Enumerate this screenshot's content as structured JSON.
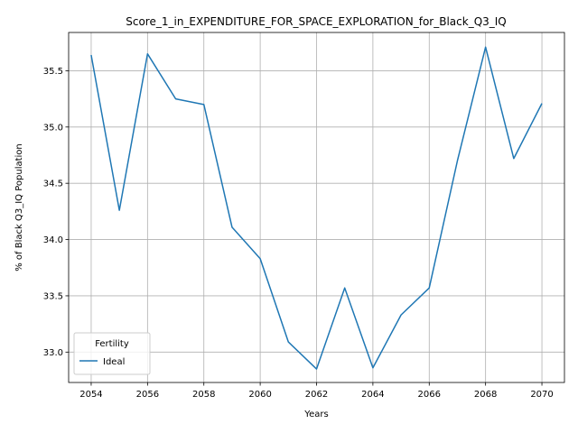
{
  "chart_data": {
    "type": "line",
    "title": "Score_1_in_EXPENDITURE_FOR_SPACE_EXPLORATION_for_Black_Q3_IQ",
    "xlabel": "Years",
    "ylabel": "% of Black Q3_IQ Population",
    "xlim": [
      2053.2,
      2070.8
    ],
    "ylim": [
      32.73,
      35.84
    ],
    "x_ticks": [
      2054,
      2056,
      2058,
      2060,
      2062,
      2064,
      2066,
      2068,
      2070
    ],
    "y_ticks": [
      33.0,
      33.5,
      34.0,
      34.5,
      35.0,
      35.5
    ],
    "grid": true,
    "legend": {
      "title": "Fertility",
      "position": "lower-left"
    },
    "series": [
      {
        "name": "Ideal",
        "color": "#1f77b4",
        "x": [
          2054,
          2055,
          2056,
          2057,
          2058,
          2059,
          2060,
          2061,
          2062,
          2063,
          2064,
          2065,
          2066,
          2067,
          2068,
          2069,
          2070
        ],
        "y": [
          35.64,
          34.26,
          35.65,
          35.25,
          35.2,
          34.11,
          33.83,
          33.09,
          32.85,
          33.57,
          32.86,
          33.33,
          33.57,
          34.7,
          35.71,
          34.72,
          35.21
        ]
      }
    ]
  }
}
